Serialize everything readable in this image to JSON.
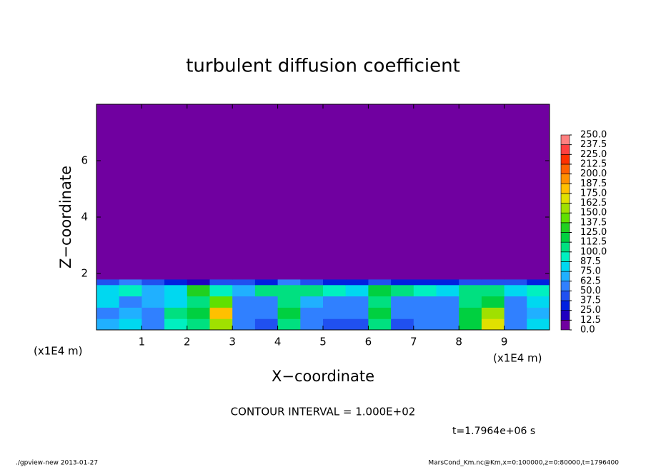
{
  "chart_data": {
    "type": "heatmap",
    "title": "turbulent diffusion coefficient",
    "x_label": "X−coordinate",
    "y_label": "Z−coordinate",
    "x_unit_left": "(x1E4 m)",
    "x_unit_right": "(x1E4 m)",
    "xlim": [
      0,
      10
    ],
    "ylim": [
      0,
      8
    ],
    "xticks": [
      1,
      2,
      3,
      4,
      5,
      6,
      7,
      8,
      9
    ],
    "yticks": [
      2,
      4,
      6
    ],
    "xbins": [
      0,
      0.5,
      1,
      1.5,
      2,
      2.5,
      3,
      3.5,
      4,
      4.5,
      5,
      5.5,
      6,
      6.5,
      7,
      7.5,
      8,
      8.5,
      9,
      9.5,
      10
    ],
    "ybins": [
      0,
      0.4,
      0.8,
      1.2,
      1.6,
      1.8,
      8
    ],
    "values": [
      [
        70,
        80,
        60,
        90,
        110,
        160,
        50,
        45,
        110,
        50,
        45,
        40,
        110,
        45,
        55,
        60,
        120,
        170,
        50,
        80
      ],
      [
        60,
        70,
        55,
        100,
        120,
        175,
        60,
        50,
        115,
        60,
        55,
        50,
        115,
        55,
        50,
        50,
        115,
        150,
        55,
        70
      ],
      [
        75,
        60,
        65,
        80,
        110,
        140,
        55,
        60,
        110,
        65,
        60,
        55,
        110,
        60,
        60,
        55,
        110,
        120,
        60,
        75
      ],
      [
        80,
        90,
        70,
        85,
        130,
        95,
        70,
        100,
        110,
        100,
        90,
        80,
        120,
        100,
        90,
        85,
        110,
        100,
        80,
        90
      ],
      [
        45,
        50,
        40,
        30,
        20,
        40,
        45,
        30,
        50,
        40,
        35,
        30,
        40,
        35,
        30,
        25,
        40,
        45,
        40,
        35
      ],
      [
        0,
        0,
        0,
        0,
        0,
        0,
        0,
        0,
        0,
        0,
        0,
        0,
        0,
        0,
        0,
        0,
        0,
        0,
        0,
        0
      ]
    ],
    "colorbar": {
      "ticks": [
        {
          "value": 0,
          "label": "0.0"
        },
        {
          "value": 12.5,
          "label": "12.5"
        },
        {
          "value": 25,
          "label": "25.0"
        },
        {
          "value": 37.5,
          "label": "37.5"
        },
        {
          "value": 50,
          "label": "50.0"
        },
        {
          "value": 62.5,
          "label": "62.5"
        },
        {
          "value": 75,
          "label": "75.0"
        },
        {
          "value": 87.5,
          "label": "87.5"
        },
        {
          "value": 100,
          "label": "100.0"
        },
        {
          "value": 112.5,
          "label": "112.5"
        },
        {
          "value": 125,
          "label": "125.0"
        },
        {
          "value": 137.5,
          "label": "137.5"
        },
        {
          "value": 150,
          "label": "150.0"
        },
        {
          "value": 162.5,
          "label": "162.5"
        },
        {
          "value": 175,
          "label": "175.0"
        },
        {
          "value": 187.5,
          "label": "187.5"
        },
        {
          "value": 200,
          "label": "200.0"
        },
        {
          "value": 212.5,
          "label": "212.5"
        },
        {
          "value": 225,
          "label": "225.0"
        },
        {
          "value": 237.5,
          "label": "237.5"
        },
        {
          "value": 250,
          "label": "250.0"
        }
      ],
      "colors": [
        "#7000a0",
        "#2000c0",
        "#0020e0",
        "#2050f0",
        "#3080ff",
        "#20b0ff",
        "#00d8f0",
        "#00f0c0",
        "#00e080",
        "#00d040",
        "#20d020",
        "#60e000",
        "#a0e000",
        "#e0e000",
        "#ffc000",
        "#ff9000",
        "#ff6000",
        "#ff3000",
        "#ff4040",
        "#ff8080"
      ]
    },
    "contour_interval": "CONTOUR INTERVAL = 1.000E+02",
    "time": "t=1.7964e+06 s",
    "footer_left": "./gpview-new   2013-01-27",
    "footer_right": "MarsCond_Km.nc@Km,x=0:100000,z=0:80000,t=1796400"
  }
}
